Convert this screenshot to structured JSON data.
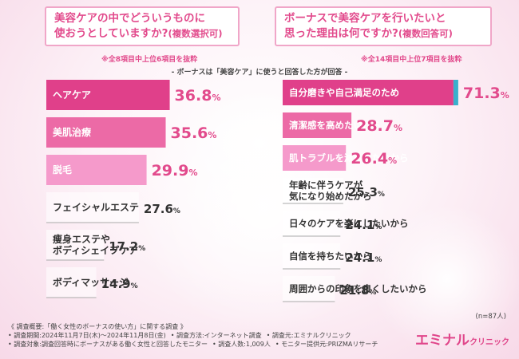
{
  "left": {
    "question_line1": "美容ケアの中でどういうものに",
    "question_line2_main": "使おうとしていますか?",
    "question_line2_small": "(複数選択可)",
    "note": "※全8項目中上位6項目を抜粋"
  },
  "right": {
    "question_line1": "ボーナスで美容ケアを行いたいと",
    "question_line2_main": "思った理由は何ですか?",
    "question_line2_small": "(複数回答可)",
    "note": "※全14項目中上位7項目を抜粋"
  },
  "subnote": "- ボーナスは「美容ケア」に使うと回答した方が回答 -",
  "n_label": "(n=87人)",
  "colors": {
    "accent": "#e24a8c",
    "rank1": "#e0408a",
    "rank2": "#ec6aa6",
    "rank3": "#f59acb",
    "other": "#6b6b6b",
    "teal_bar": "#3ab0cc"
  },
  "chart_data": [
    {
      "type": "bar",
      "orientation": "horizontal",
      "categories": [
        "ヘアケア",
        "美肌治療",
        "脱毛",
        "フェイシャルエステ",
        "痩身エステや\nボディシェイプケア",
        "ボディマッサージ"
      ],
      "values": [
        36.8,
        35.6,
        29.9,
        27.6,
        17.2,
        14.9
      ],
      "value_labels": [
        "36.8%",
        "35.6%",
        "29.9%",
        "27.6%",
        "17.2%",
        "14.9%"
      ],
      "unit": "%"
    },
    {
      "type": "bar",
      "orientation": "horizontal",
      "categories": [
        "自分磨きや自己満足のため",
        "清潔感を高めたいから",
        "肌トラブルを減らしたいから",
        "年齢に伴うケアが\n気になり始めたから",
        "日々のケアを楽にしたいから",
        "自信を持ちたいから",
        "周囲からの印象を良くしたいから"
      ],
      "values": [
        71.3,
        28.7,
        26.4,
        25.3,
        24.1,
        24.1,
        21.8
      ],
      "value_labels": [
        "71.3%",
        "28.7%",
        "26.4%",
        "25.3%",
        "24.1%",
        "24.1%",
        "21.8%"
      ],
      "unit": "%"
    }
  ],
  "footer": {
    "line1": "《 調査概要:「働く女性のボーナスの使い方」に関する調査 》",
    "line2a": "• 調査期間:2024年11月7日(木)〜2024年11月8日(金)",
    "line2b": "• 調査方法:インターネット調査",
    "line2c": "• 調査元:エミナルクリニック",
    "line3a": "• 調査対象:調査回答時にボーナスがある働く女性と回答したモニター",
    "line3b": "• 調査人数:1,009人",
    "line3c": "• モニター提供元:PRIZMAリサーチ"
  },
  "logo": {
    "main": "エミナル",
    "sub": "クリニック"
  }
}
